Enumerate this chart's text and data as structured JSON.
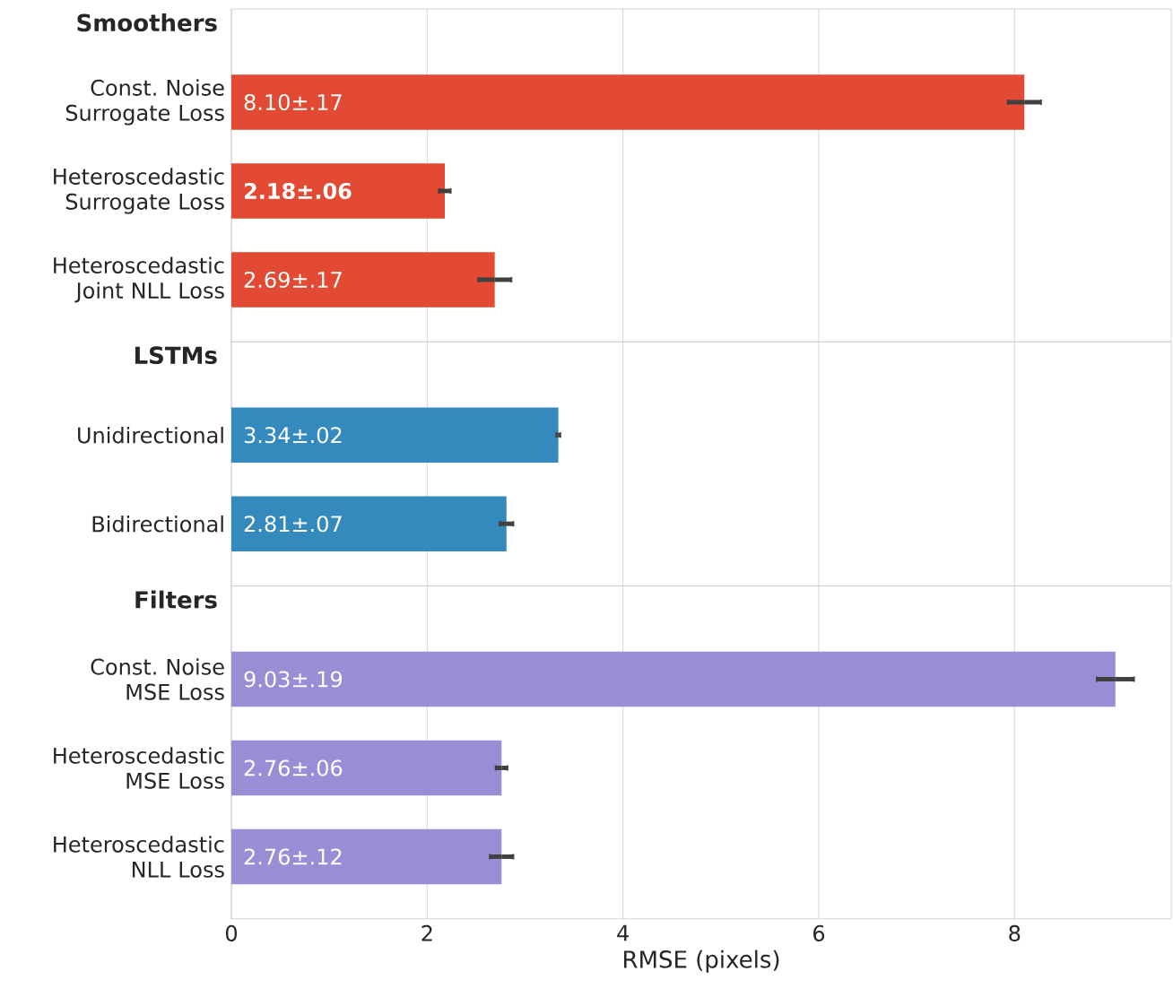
{
  "chart_data": [
    {
      "type": "bar",
      "orientation": "horizontal",
      "title": "Smoothers",
      "categories": [
        "Const. Noise Surrogate Loss",
        "Heteroscedastic Surrogate Loss",
        "Heteroscedastic Joint NLL Loss"
      ],
      "values": [
        8.1,
        2.18,
        2.69
      ],
      "errors": [
        0.17,
        0.06,
        0.17
      ],
      "value_labels": [
        "8.10±.17",
        "**2.18±.06**",
        "2.69±.17"
      ],
      "color": "#e24a33",
      "xlim": [
        0,
        9.6
      ],
      "xticks": [
        0,
        2,
        4,
        6,
        8
      ],
      "grid": "x",
      "tick_labels": "y"
    },
    {
      "type": "bar",
      "orientation": "horizontal",
      "title": "LSTMs",
      "categories": [
        "Unidirectional",
        "Bidirectional"
      ],
      "values": [
        3.34,
        2.81
      ],
      "errors": [
        0.02,
        0.07
      ],
      "value_labels": [
        "3.34±.02",
        "2.81±.07"
      ],
      "color": "#348abd",
      "xlim": [
        0,
        9.6
      ],
      "xticks": [
        0,
        2,
        4,
        6,
        8
      ],
      "grid": "x",
      "tick_labels": "y"
    },
    {
      "type": "bar",
      "orientation": "horizontal",
      "title": "Filters",
      "categories": [
        "Const. Noise MSE Loss",
        "Heteroscedastic MSE Loss",
        "Heteroscedastic NLL Loss"
      ],
      "values": [
        9.03,
        2.76,
        2.76
      ],
      "errors": [
        0.19,
        0.06,
        0.12
      ],
      "value_labels": [
        "9.03±.19",
        "2.76±.06",
        "2.76±.12"
      ],
      "color": "#988ed5",
      "xlim": [
        0,
        9.6
      ],
      "xticks": [
        0,
        2,
        4,
        6,
        8
      ],
      "grid": "x",
      "xlabel": "RMSE (pixels)"
    }
  ]
}
